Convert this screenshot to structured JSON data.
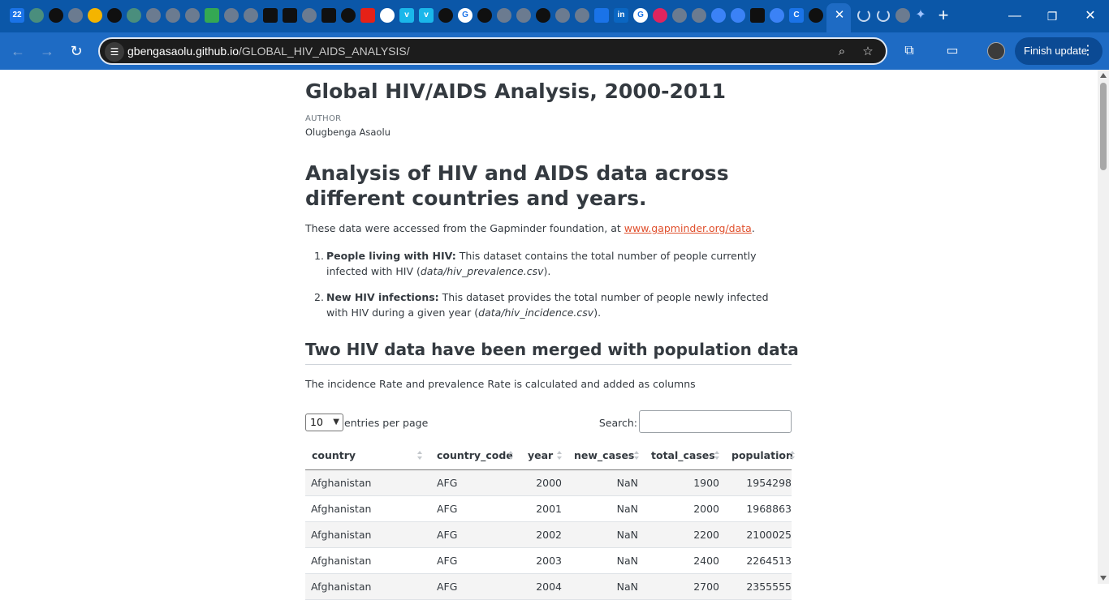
{
  "browser": {
    "tab_favicons": [
      {
        "icon": "calendar-icon",
        "text": "22",
        "color": "#1a73e8"
      },
      {
        "icon": "site-icon",
        "text": "",
        "color": "#4a8e7d"
      },
      {
        "icon": "github-icon",
        "text": "",
        "color": "#101010"
      },
      {
        "icon": "globe-icon",
        "text": "",
        "color": "#6b7b90"
      },
      {
        "icon": "coin-icon",
        "text": "",
        "color": "#f4b400"
      },
      {
        "icon": "github-icon",
        "text": "",
        "color": "#101010"
      },
      {
        "icon": "site-icon",
        "text": "",
        "color": "#4a8e7d"
      },
      {
        "icon": "globe-icon",
        "text": "",
        "color": "#6b7b90"
      },
      {
        "icon": "globe-icon",
        "text": "",
        "color": "#6b7b90"
      },
      {
        "icon": "globe-icon",
        "text": "",
        "color": "#6b7b90"
      },
      {
        "icon": "drive-icon",
        "text": "",
        "color": "#34a853"
      },
      {
        "icon": "globe-icon",
        "text": "",
        "color": "#6b7b90"
      },
      {
        "icon": "globe-icon",
        "text": "",
        "color": "#6b7b90"
      },
      {
        "icon": "share-icon",
        "text": "",
        "color": "#101010"
      },
      {
        "icon": "share-icon",
        "text": "",
        "color": "#101010"
      },
      {
        "icon": "globe-icon",
        "text": "",
        "color": "#6b7b90"
      },
      {
        "icon": "share-icon",
        "text": "",
        "color": "#101010"
      },
      {
        "icon": "github-icon",
        "text": "",
        "color": "#101010"
      },
      {
        "icon": "youtube-icon",
        "text": "",
        "color": "#e62117"
      },
      {
        "icon": "openai-icon",
        "text": "",
        "color": "#ffffff"
      },
      {
        "icon": "vimeo-icon",
        "text": "v",
        "color": "#1ab7ea"
      },
      {
        "icon": "vimeo-icon",
        "text": "v",
        "color": "#1ab7ea"
      },
      {
        "icon": "github-icon",
        "text": "",
        "color": "#101010"
      },
      {
        "icon": "google-icon",
        "text": "G",
        "color": "#ffffff"
      },
      {
        "icon": "github-icon",
        "text": "",
        "color": "#101010"
      },
      {
        "icon": "globe-icon",
        "text": "",
        "color": "#6b7b90"
      },
      {
        "icon": "globe-icon",
        "text": "",
        "color": "#6b7b90"
      },
      {
        "icon": "github-icon",
        "text": "",
        "color": "#101010"
      },
      {
        "icon": "globe-icon",
        "text": "",
        "color": "#6b7b90"
      },
      {
        "icon": "globe-icon",
        "text": "",
        "color": "#6b7b90"
      },
      {
        "icon": "news-icon",
        "text": "",
        "color": "#1a73e8"
      },
      {
        "icon": "linkedin-icon",
        "text": "in",
        "color": "#0a66c2"
      },
      {
        "icon": "google-icon",
        "text": "G",
        "color": "#ffffff"
      },
      {
        "icon": "heart-icon",
        "text": "",
        "color": "#e0245e"
      },
      {
        "icon": "globe-icon",
        "text": "",
        "color": "#6b7b90"
      },
      {
        "icon": "globe-icon",
        "text": "",
        "color": "#6b7b90"
      },
      {
        "icon": "grid-globe-icon",
        "text": "",
        "color": "#3b82f6"
      },
      {
        "icon": "grid-globe-icon",
        "text": "",
        "color": "#3b82f6"
      },
      {
        "icon": "chart-icon",
        "text": "",
        "color": "#101010"
      },
      {
        "icon": "grid-globe-icon",
        "text": "",
        "color": "#3b82f6"
      },
      {
        "icon": "c-icon",
        "text": "C",
        "color": "#1a73e8"
      },
      {
        "icon": "github-icon",
        "text": "",
        "color": "#101010"
      },
      {
        "icon": "globe-icon",
        "text": "",
        "color": "#6b7b90"
      }
    ],
    "active_tab_close": "✕",
    "new_tab": "+",
    "window_controls": {
      "minimize": "—",
      "restore": "❐",
      "close": "✕"
    },
    "url_host": "gbengasaolu.github.io",
    "url_path": "/GLOBAL_HIV_AIDS_ANALYSIS/",
    "finish_update_label": "Finish update",
    "colors": {
      "tabbar": "#0b57a8",
      "toolbar": "#1e6bc4",
      "omnibox": "#1c1c1c"
    }
  },
  "page": {
    "title": "Global HIV/AIDS Analysis, 2000-2011",
    "author_label": "AUTHOR",
    "author_name": "Olugbenga Asaolu",
    "heading": "Analysis of HIV and AIDS data across different countries and years.",
    "intro_text": "These data were accessed from the Gapminder foundation, at ",
    "intro_link": "www.gapminder.org/data",
    "intro_end": ".",
    "list": [
      {
        "num": "1.",
        "bold": "People living with HIV:",
        "text": " This dataset contains the total number of people currently infected with HIV (",
        "file": "data/hiv_prevalence.csv",
        "end": ")."
      },
      {
        "num": "2.",
        "bold": "New HIV infections:",
        "text": " This dataset provides the total number of people newly infected with HIV during a given year (",
        "file": "data/hiv_incidence.csv",
        "end": ")."
      }
    ],
    "section_heading": "Two HIV data have been merged with population data",
    "section_text": "The incidence Rate and prevalence Rate is calculated and added as columns",
    "table_controls": {
      "page_length": "10",
      "entries_label": "entries per page",
      "search_label": "Search:",
      "search_value": ""
    },
    "table": {
      "columns": [
        "country",
        "country_code",
        "year",
        "new_cases",
        "total_cases",
        "population"
      ],
      "rows": [
        [
          "Afghanistan",
          "AFG",
          "2000",
          "NaN",
          "1900",
          "1954298"
        ],
        [
          "Afghanistan",
          "AFG",
          "2001",
          "NaN",
          "2000",
          "1968863"
        ],
        [
          "Afghanistan",
          "AFG",
          "2002",
          "NaN",
          "2200",
          "2100025"
        ],
        [
          "Afghanistan",
          "AFG",
          "2003",
          "NaN",
          "2400",
          "2264513"
        ],
        [
          "Afghanistan",
          "AFG",
          "2004",
          "NaN",
          "2700",
          "2355555"
        ]
      ]
    }
  }
}
